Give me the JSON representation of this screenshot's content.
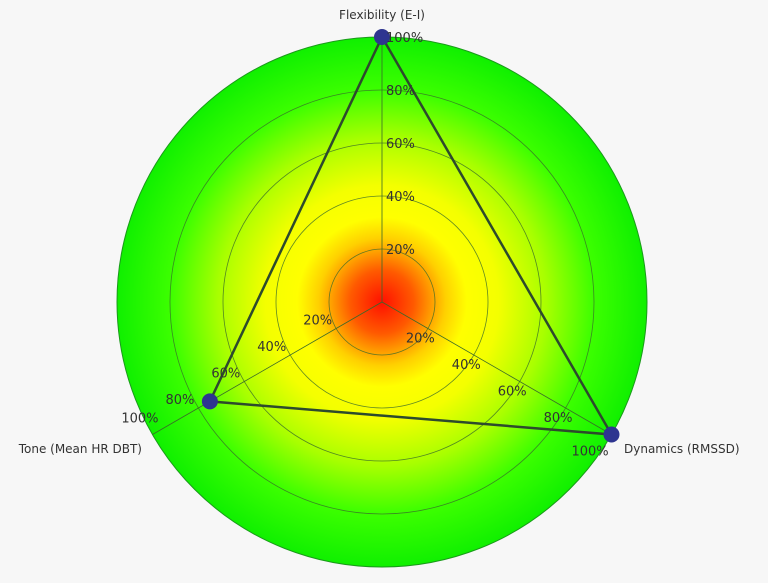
{
  "chart_data": {
    "type": "radar",
    "axes": [
      "Flexibility (E-I)",
      "Dynamics (RMSSD)",
      "Tone (Mean HR DBT)"
    ],
    "values": [
      100,
      100,
      75
    ],
    "range": [
      0,
      100
    ],
    "ticks": [
      20,
      40,
      60,
      80,
      100
    ],
    "tick_labels": [
      "20%",
      "40%",
      "60%",
      "80%",
      "100%"
    ],
    "grid": true,
    "background": "radial gradient red center through yellow to green edge",
    "colors": {
      "line": "#2d4a2d",
      "marker": "#2e3590",
      "center": "#ff1a00",
      "mid": "#ffff00",
      "edge": "#00ff00"
    }
  }
}
